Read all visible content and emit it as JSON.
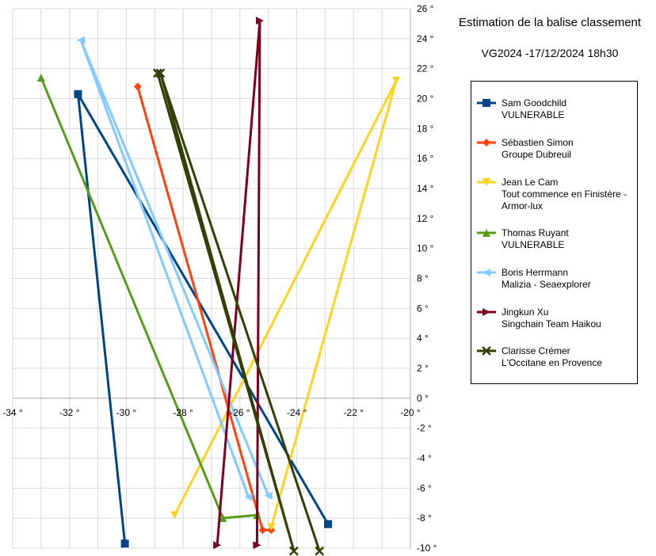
{
  "chart_data": {
    "type": "line",
    "title": "Estimation de la balise classement",
    "subtitle": "VG2024 -17/12/2024 18h30",
    "xlabel": "",
    "ylabel": "",
    "xlim": [
      -34,
      -20
    ],
    "ylim": [
      -10,
      26
    ],
    "x_ticks": [
      "-34 °",
      "-32 °",
      "-30 °",
      "-28 °",
      "-26 °",
      "-24 °",
      "-22 °",
      "-20 °"
    ],
    "y_ticks": [
      "-10 °",
      "-8 °",
      "-6 °",
      "-4 °",
      "-2 °",
      "0 °",
      "2 °",
      "4 °",
      "6 °",
      "8 °",
      "10 °",
      "12 °",
      "14 °",
      "16 °",
      "18 °",
      "20 °",
      "22 °",
      "24 °",
      "26 °"
    ],
    "grid": true,
    "legend_position": "right",
    "series": [
      {
        "name": "Sam Goodchild",
        "subname": "VULNERABLE",
        "color": "#004586",
        "marker": "square",
        "points": [
          [
            -30.05,
            -9.7
          ],
          [
            -31.7,
            20.3
          ],
          [
            -22.9,
            -8.4
          ]
        ]
      },
      {
        "name": "Sébastien Simon",
        "subname": "Groupe Dubreuil",
        "color": "#ff420e",
        "marker": "diamond",
        "points": [
          [
            -29.6,
            20.8
          ],
          [
            -25.2,
            -8.8
          ],
          [
            -24.9,
            -8.8
          ]
        ]
      },
      {
        "name": "Jean Le Cam",
        "subname": "Tout commence en Finistère - Armor-lux",
        "color": "#ffd320",
        "marker": "triangle-down",
        "points": [
          [
            -28.3,
            -7.8
          ],
          [
            -20.5,
            21.2
          ],
          [
            -24.9,
            -8.6
          ]
        ]
      },
      {
        "name": "Thomas Ruyant",
        "subname": "VULNERABLE",
        "color": "#579d1c",
        "marker": "triangle-up",
        "points": [
          [
            -33.0,
            21.4
          ],
          [
            -26.6,
            -8.0
          ],
          [
            -25.4,
            -7.8
          ]
        ]
      },
      {
        "name": "Boris Herrmann",
        "subname": "Malizia - Seaexplorer",
        "color": "#83caff",
        "marker": "triangle-left",
        "points": [
          [
            -25.7,
            -6.6
          ],
          [
            -31.6,
            23.9
          ],
          [
            -25.0,
            -6.5
          ]
        ]
      },
      {
        "name": "Jingkun Xu",
        "subname": "Singchain Team Haikou",
        "color": "#7e0021",
        "marker": "triangle-right",
        "points": [
          [
            -26.8,
            -9.8
          ],
          [
            -25.3,
            25.2
          ],
          [
            -25.4,
            -9.8
          ]
        ]
      },
      {
        "name": "Clarisse Crémer",
        "subname": "L'Occitane en Provence",
        "color": "#314004",
        "marker": "x",
        "points": [
          [
            -28.9,
            21.7
          ],
          [
            -24.1,
            -10.2
          ],
          [
            -28.8,
            21.7
          ],
          [
            -23.2,
            -10.2
          ]
        ]
      }
    ]
  }
}
